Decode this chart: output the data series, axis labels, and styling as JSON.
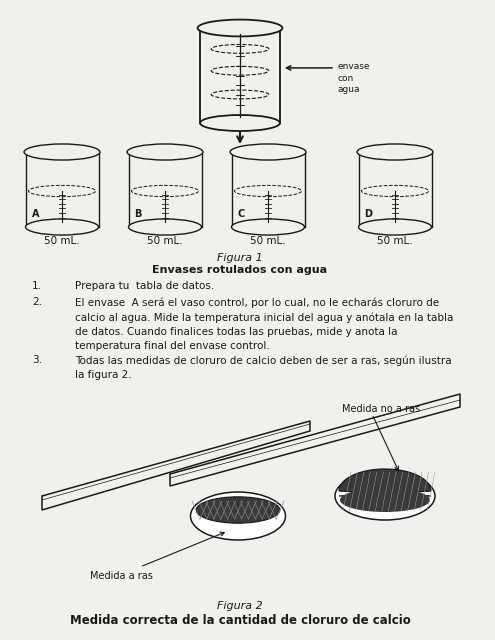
{
  "bg_color": "#f0f0ec",
  "title_line1": "Figura 1",
  "title_line2": "Envases rotulados con agua",
  "figure2_line1": "Figura 2",
  "figure2_line2": "Medida correcta de la cantidad de cloruro de calcio",
  "label_envase": "envase\ncon\nagua",
  "beaker_labels": [
    "A",
    "B",
    "C",
    "D"
  ],
  "beaker_volumes": [
    "50 mL.",
    "50 mL.",
    "50 mL.",
    "50 mL."
  ],
  "item1": "Prepara tu  tabla de datos.",
  "item2": "El envase  A será el vaso control, por lo cual, no le echarás cloruro de\ncalcio al agua. Mide la temperatura inicial del agua y anótala en la tabla\nde datos. Cuando finalices todas las pruebas, mide y anota la\ntemperatura final del envase control.",
  "item3": "Todas las medidas de cloruro de calcio deben de ser a ras, según ilustra\nla figura 2.",
  "label_medida_ras": "Medida a ras",
  "label_medida_no_ras": "Medida no a ras",
  "text_color": "#1a1a1a",
  "line_color": "#1a1a1a"
}
